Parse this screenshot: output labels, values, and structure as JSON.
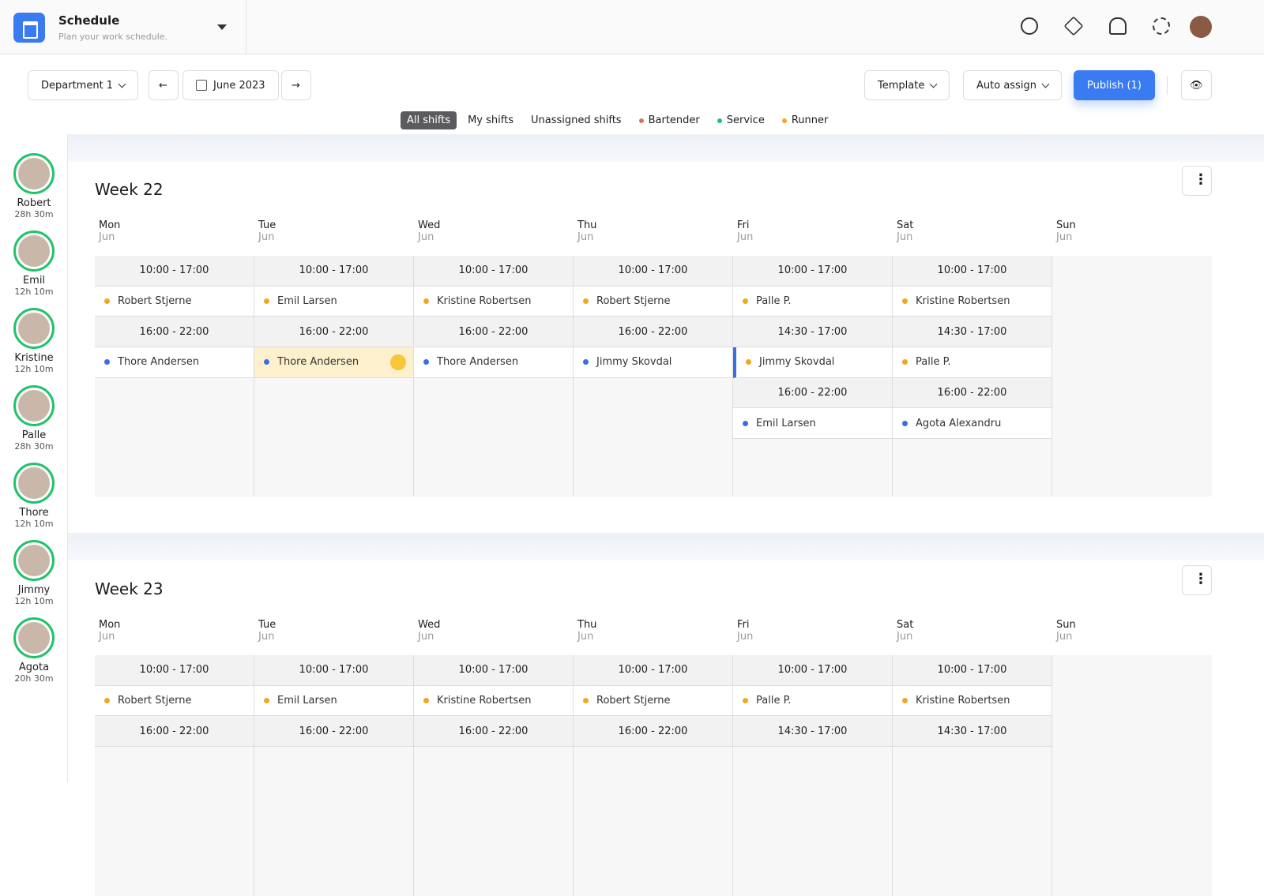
{
  "header": {
    "title": "Schedule",
    "subtitle": "Plan your work schedule."
  },
  "toolbar": {
    "department": "Department 1",
    "month": "June 2023",
    "template": "Template",
    "auto_assign": "Auto assign",
    "publish": "Publish (1)"
  },
  "filters": [
    "All shifts",
    "My shifts",
    "Unassigned shifts",
    "Bartender",
    "Service",
    "Runner"
  ],
  "employees": [
    {
      "name": "Robert",
      "hours": "28h 30m"
    },
    {
      "name": "Emil",
      "hours": "12h 10m"
    },
    {
      "name": "Kristine",
      "hours": "12h 10m"
    },
    {
      "name": "Palle",
      "hours": "28h 30m"
    },
    {
      "name": "Thore",
      "hours": "12h 10m"
    },
    {
      "name": "Jimmy",
      "hours": "12h 10m"
    },
    {
      "name": "Agota",
      "hours": "20h 30m"
    }
  ],
  "weeks": [
    {
      "title": "Week 22",
      "days": [
        {
          "day": "Mon",
          "month": "Jun",
          "shifts": [
            {
              "time": "10:00 - 17:00",
              "person": "Robert Stjerne",
              "color": "#f0a81c"
            },
            {
              "time": "16:00 - 22:00",
              "person": "Thore Andersen",
              "color": "#3a6fe3"
            }
          ]
        },
        {
          "day": "Tue",
          "month": "Jun",
          "shifts": [
            {
              "time": "10:00 - 17:00",
              "person": "Emil Larsen",
              "color": "#f0a81c"
            },
            {
              "time": "16:00 - 22:00",
              "person": "Thore Andersen",
              "color": "#3a6fe3"
            }
          ]
        },
        {
          "day": "Wed",
          "month": "Jun",
          "shifts": [
            {
              "time": "10:00 - 17:00",
              "person": "Kristine Robertsen",
              "color": "#f0a81c"
            },
            {
              "time": "16:00 - 22:00",
              "person": "Thore Andersen",
              "color": "#3a6fe3"
            }
          ]
        },
        {
          "day": "Thu",
          "month": "Jun",
          "shifts": [
            {
              "time": "10:00 - 17:00",
              "person": "Robert Stjerne",
              "color": "#f0a81c"
            },
            {
              "time": "16:00 - 22:00",
              "person": "Jimmy Skovdal",
              "color": "#3a6fe3"
            }
          ]
        },
        {
          "day": "Fri",
          "month": "Jun",
          "shifts": [
            {
              "time": "10:00 - 17:00",
              "person": "Palle P.",
              "color": "#f0a81c"
            },
            {
              "time": "14:30 - 17:00",
              "person": "Jimmy Skovdal",
              "color": "#f0a81c"
            },
            {
              "time": "16:00 - 22:00",
              "person": "Emil Larsen",
              "color": "#3a6fe3"
            }
          ]
        },
        {
          "day": "Sat",
          "month": "Jun",
          "shifts": [
            {
              "time": "10:00 - 17:00",
              "person": "Kristine Robertsen",
              "color": "#f0a81c"
            },
            {
              "time": "14:30 - 17:00",
              "person": "Palle P.",
              "color": "#f0a81c"
            },
            {
              "time": "16:00 - 22:00",
              "person": "Agota Alexandru",
              "color": "#3a6fe3"
            }
          ]
        },
        {
          "day": "Sun",
          "month": "Jun",
          "shifts": []
        }
      ]
    },
    {
      "title": "Week 23",
      "days": [
        {
          "day": "Mon",
          "month": "Jun",
          "shifts": [
            {
              "time": "10:00 - 17:00",
              "person": "Robert Stjerne",
              "color": "#f0a81c"
            },
            {
              "time": "16:00 - 22:00"
            }
          ]
        },
        {
          "day": "Tue",
          "month": "Jun",
          "shifts": [
            {
              "time": "10:00 - 17:00",
              "person": "Emil Larsen",
              "color": "#f0a81c"
            },
            {
              "time": "16:00 - 22:00"
            }
          ]
        },
        {
          "day": "Wed",
          "month": "Jun",
          "shifts": [
            {
              "time": "10:00 - 17:00",
              "person": "Kristine Robertsen",
              "color": "#f0a81c"
            },
            {
              "time": "16:00 - 22:00"
            }
          ]
        },
        {
          "day": "Thu",
          "month": "Jun",
          "shifts": [
            {
              "time": "10:00 - 17:00",
              "person": "Robert Stjerne",
              "color": "#f0a81c"
            },
            {
              "time": "16:00 - 22:00"
            }
          ]
        },
        {
          "day": "Fri",
          "month": "Jun",
          "shifts": [
            {
              "time": "10:00 - 17:00",
              "person": "Palle P.",
              "color": "#f0a81c"
            },
            {
              "time": "14:30 - 17:00"
            }
          ]
        },
        {
          "day": "Sat",
          "month": "Jun",
          "shifts": [
            {
              "time": "10:00 - 17:00",
              "person": "Kristine Robertsen",
              "color": "#f0a81c"
            },
            {
              "time": "14:30 - 17:00"
            }
          ]
        },
        {
          "day": "Sun",
          "month": "Jun",
          "shifts": []
        }
      ]
    }
  ]
}
